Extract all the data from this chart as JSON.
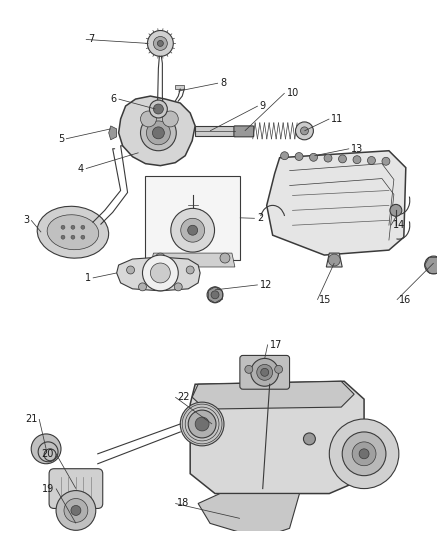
{
  "bg_color": "#ffffff",
  "line_color": "#3a3a3a",
  "label_color": "#1a1a1a",
  "label_fontsize": 7.0,
  "fig_width": 4.38,
  "fig_height": 5.33,
  "dpi": 100,
  "leader_lw": 0.55,
  "part_lw_thin": 0.5,
  "part_lw_med": 0.8,
  "part_lw_thick": 1.1,
  "gray_dark": "#707070",
  "gray_med": "#999999",
  "gray_light": "#cccccc",
  "gray_fill": "#e0e0e0",
  "gray_body": "#b8b8b8"
}
